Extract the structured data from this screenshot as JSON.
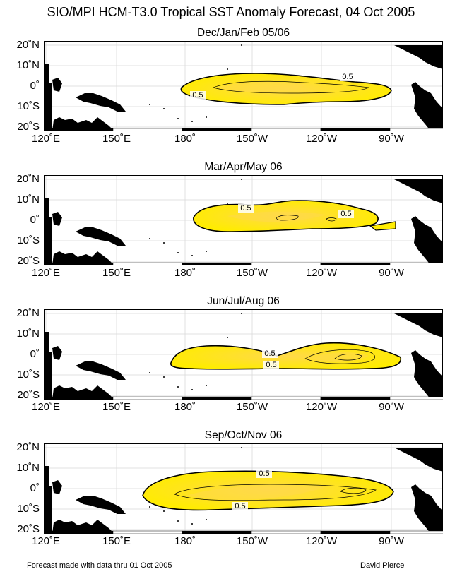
{
  "title": "SIO/MPI HCM-T3.0 Tropical SST Anomaly Forecast, 04 Oct 2005",
  "lat_labels": [
    "20˚N",
    "10˚N",
    "0˚",
    "10˚S",
    "20˚S"
  ],
  "lon_labels": [
    "120˚E",
    "150˚E",
    "180˚",
    "150˚W",
    "120˚W",
    "90˚W"
  ],
  "panels": [
    {
      "title": "Dec/Jan/Feb 05/06",
      "contour_labels": [
        "0.5",
        "0.5"
      ]
    },
    {
      "title": "Mar/Apr/May 06",
      "contour_labels": [
        "0.5",
        "0.5"
      ]
    },
    {
      "title": "Jun/Jul/Aug 06",
      "contour_labels": [
        "0.5",
        "0.5"
      ]
    },
    {
      "title": "Sep/Oct/Nov 06",
      "contour_labels": [
        "0.5",
        "0.5"
      ]
    }
  ],
  "contour_level": 0.5,
  "colors": {
    "anomaly_fill": "#ffec00",
    "anomaly_core": "#ffd94a",
    "land": "#000000",
    "grid": "#d9d9d9"
  },
  "footer": {
    "left": "Forecast made with data thru 01 Oct 2005",
    "right": "David Pierce"
  }
}
